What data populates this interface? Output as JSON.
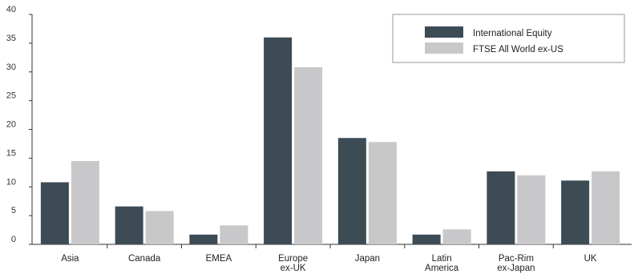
{
  "chart_data": {
    "type": "bar",
    "title": "",
    "xlabel": "",
    "ylabel": "",
    "ylim": [
      0,
      40
    ],
    "yticks": [
      0,
      5,
      10,
      15,
      20,
      25,
      30,
      35,
      40
    ],
    "categories": [
      [
        "Asia"
      ],
      [
        "Canada"
      ],
      [
        "EMEA"
      ],
      [
        "Europe",
        "ex-UK"
      ],
      [
        "Japan"
      ],
      [
        "Latin",
        "America"
      ],
      [
        "Pac-Rim",
        "ex-Japan"
      ],
      [
        "UK"
      ]
    ],
    "series": [
      {
        "name": "International Equity",
        "color": "#3d4b55",
        "values": [
          10.8,
          6.6,
          1.7,
          36.0,
          18.5,
          1.7,
          12.7,
          11.1
        ]
      },
      {
        "name": "FTSE All World ex-US",
        "color": "#c8c8ca",
        "values": [
          14.5,
          5.8,
          3.3,
          30.8,
          17.8,
          2.6,
          12.0,
          12.7
        ]
      }
    ],
    "grid": false,
    "legend_position": "top-right"
  }
}
